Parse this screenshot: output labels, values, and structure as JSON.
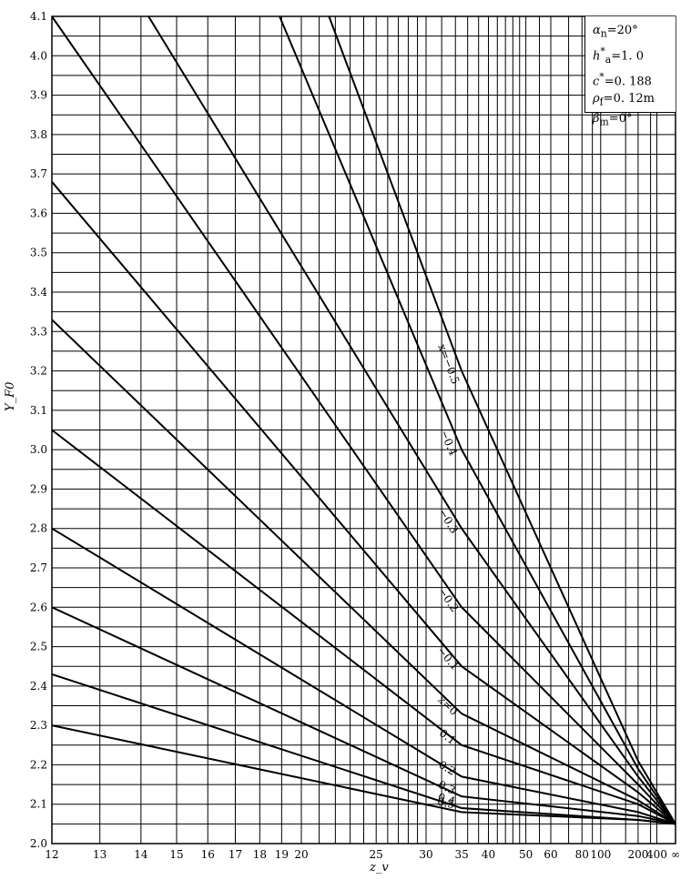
{
  "chart_data": {
    "type": "line",
    "title": "",
    "xlabel": "z_v",
    "ylabel": "Y_F0",
    "xscale": "reciprocal",
    "ylim": [
      2.0,
      4.1
    ],
    "x_tick_labels": [
      "12",
      "13",
      "14",
      "15",
      "16",
      "17",
      "18",
      "19",
      "20",
      "25",
      "30",
      "35",
      "40",
      "50",
      "60",
      "80",
      "100",
      "200",
      "400",
      "∞"
    ],
    "y_tick_labels": [
      "2.0",
      "2.1",
      "2.2",
      "2.3",
      "2.4",
      "2.5",
      "2.6",
      "2.7",
      "2.8",
      "2.9",
      "3.0",
      "3.1",
      "3.2",
      "3.3",
      "3.4",
      "3.5",
      "3.6",
      "3.7",
      "3.8",
      "3.9",
      "4.0",
      "4.1"
    ],
    "grid": true,
    "parameters": [
      {
        "symbol": "α",
        "sub": "n",
        "sup": "",
        "value": "=20°"
      },
      {
        "symbol": "h",
        "sub": "a",
        "sup": "*",
        "value": "=1. 0"
      },
      {
        "symbol": "c",
        "sub": "",
        "sup": "*",
        "value": "=0. 188"
      },
      {
        "symbol": "ρ",
        "sub": "f",
        "sup": "",
        "value": "=0. 12m"
      },
      {
        "symbol": "β",
        "sub": "m",
        "sup": "",
        "value": "=0°"
      }
    ],
    "series": [
      {
        "name": "x=−0.5",
        "label": "x=−0.5",
        "points": [
          [
            21.6,
            4.1
          ],
          [
            35,
            3.2
          ],
          [
            200,
            2.21
          ]
        ],
        "end_y": 2.05
      },
      {
        "name": "−0.4",
        "label": "−0.4",
        "points": [
          [
            18.9,
            4.1
          ],
          [
            35,
            3.0
          ],
          [
            200,
            2.19
          ]
        ],
        "end_y": 2.05
      },
      {
        "name": "−0.3",
        "label": "−0.3",
        "points": [
          [
            14.2,
            4.1
          ],
          [
            35,
            2.8
          ],
          [
            200,
            2.17
          ]
        ],
        "end_y": 2.05
      },
      {
        "name": "−0.2",
        "label": "−0.2",
        "points": [
          [
            12.0,
            4.1
          ],
          [
            35,
            2.6
          ],
          [
            200,
            2.15
          ]
        ],
        "end_y": 2.05
      },
      {
        "name": "−0.1",
        "label": "−0.1",
        "points": [
          [
            12.0,
            3.68
          ],
          [
            35,
            2.45
          ],
          [
            200,
            2.13
          ]
        ],
        "end_y": 2.05
      },
      {
        "name": "x=0",
        "label": "x=0",
        "points": [
          [
            12.0,
            3.33
          ],
          [
            35,
            2.33
          ],
          [
            200,
            2.11
          ]
        ],
        "end_y": 2.05
      },
      {
        "name": "0.1",
        "label": "0.1",
        "points": [
          [
            12.0,
            3.05
          ],
          [
            35,
            2.25
          ],
          [
            200,
            2.1
          ]
        ],
        "end_y": 2.05
      },
      {
        "name": "0.2",
        "label": "0.2",
        "points": [
          [
            12.0,
            2.8
          ],
          [
            35,
            2.17
          ],
          [
            200,
            2.08
          ]
        ],
        "end_y": 2.05
      },
      {
        "name": "0.3",
        "label": "0.3",
        "points": [
          [
            12.0,
            2.6
          ],
          [
            35,
            2.12
          ],
          [
            200,
            2.07
          ]
        ],
        "end_y": 2.05
      },
      {
        "name": "0.4",
        "label": "0.4",
        "points": [
          [
            12.0,
            2.43
          ],
          [
            35,
            2.09
          ],
          [
            200,
            2.06
          ]
        ],
        "end_y": 2.05
      },
      {
        "name": "0.5",
        "label": "0.5",
        "points": [
          [
            12.0,
            2.3
          ],
          [
            35,
            2.08
          ],
          [
            200,
            2.06
          ]
        ],
        "end_y": 2.05
      }
    ]
  }
}
